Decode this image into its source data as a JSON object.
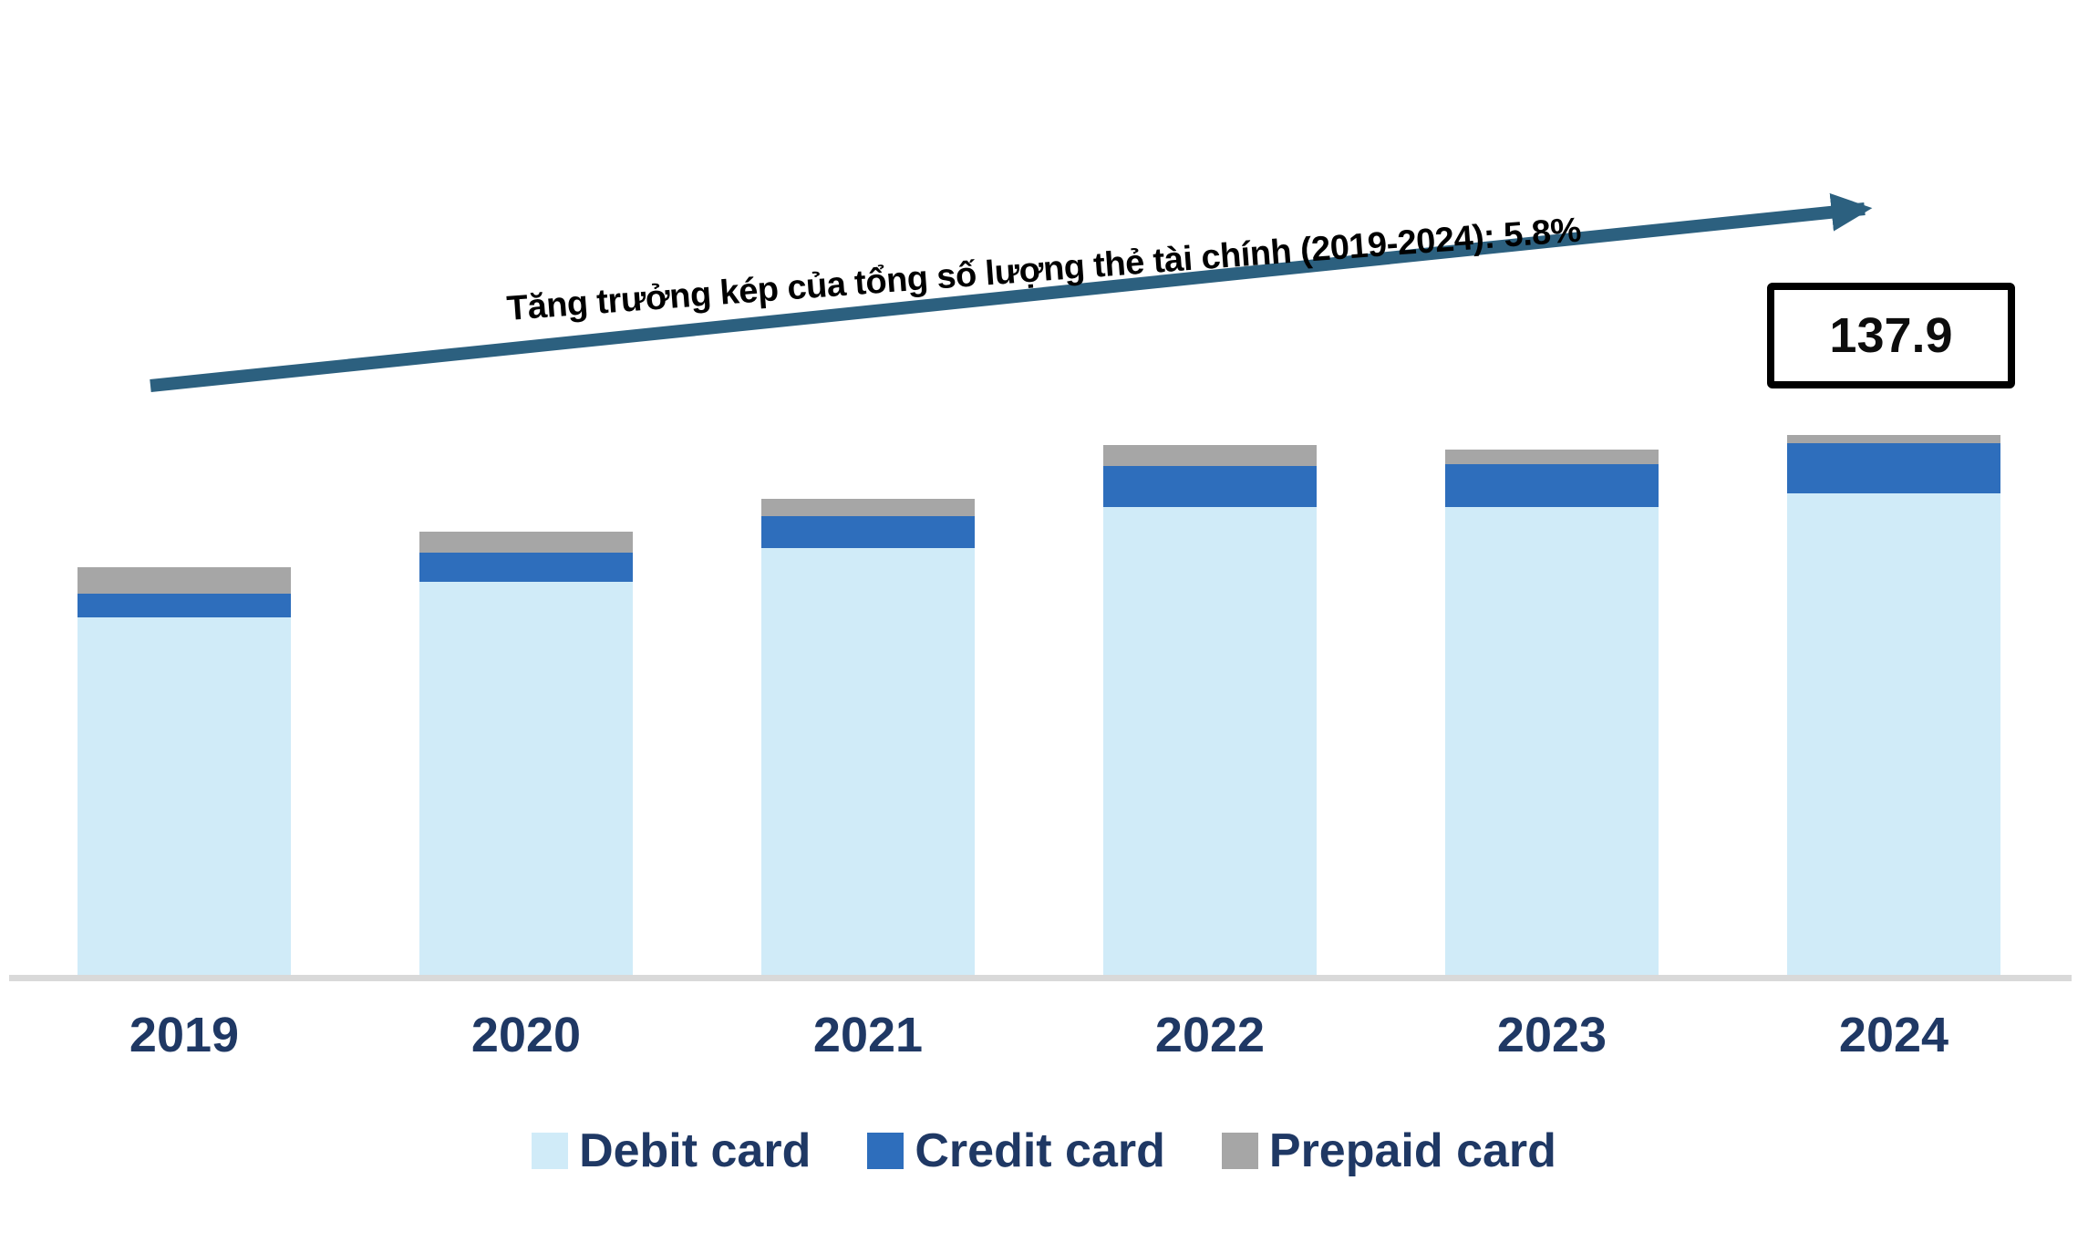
{
  "colors": {
    "debit": "#d0ebf8",
    "credit": "#2e6ebc",
    "prepaid": "#a6a6a6",
    "arrow": "#2c607f",
    "axis_line": "#d9d9d9",
    "label_text": "#1f3864",
    "title_text": "#000000",
    "annotation_border": "#000000"
  },
  "trend": {
    "label": "Tăng trưởng kép của tổng số lượng thẻ tài chính (2019-2024): 5.8%"
  },
  "annotation": {
    "value": "137.9"
  },
  "chart_data": {
    "type": "bar",
    "stacked": true,
    "title": "Tăng trưởng kép của tổng số lượng thẻ tài chính (2019-2024): 5.8%",
    "cagr_2019_2024_pct": 5.8,
    "categories": [
      "2019",
      "2020",
      "2021",
      "2022",
      "2023",
      "2024"
    ],
    "series": [
      {
        "name": "Debit card",
        "color": "#d0ebf8",
        "values": [
          91.5,
          100.6,
          109.2,
          119.6,
          119.6,
          123.1
        ]
      },
      {
        "name": "Credit card",
        "color": "#2e6ebc",
        "values": [
          6.0,
          7.4,
          8.1,
          10.4,
          10.9,
          12.7
        ]
      },
      {
        "name": "Prepaid card",
        "color": "#a6a6a6",
        "values": [
          6.7,
          5.3,
          4.4,
          5.3,
          3.7,
          2.1
        ]
      }
    ],
    "totals": [
      104.2,
      113.3,
      121.7,
      135.3,
      134.2,
      137.9
    ],
    "annotation": {
      "year": "2024",
      "value": 137.9
    },
    "xlabel": "",
    "ylabel": "",
    "y_axis_visible": false,
    "grid": false,
    "legend_position": "bottom"
  }
}
